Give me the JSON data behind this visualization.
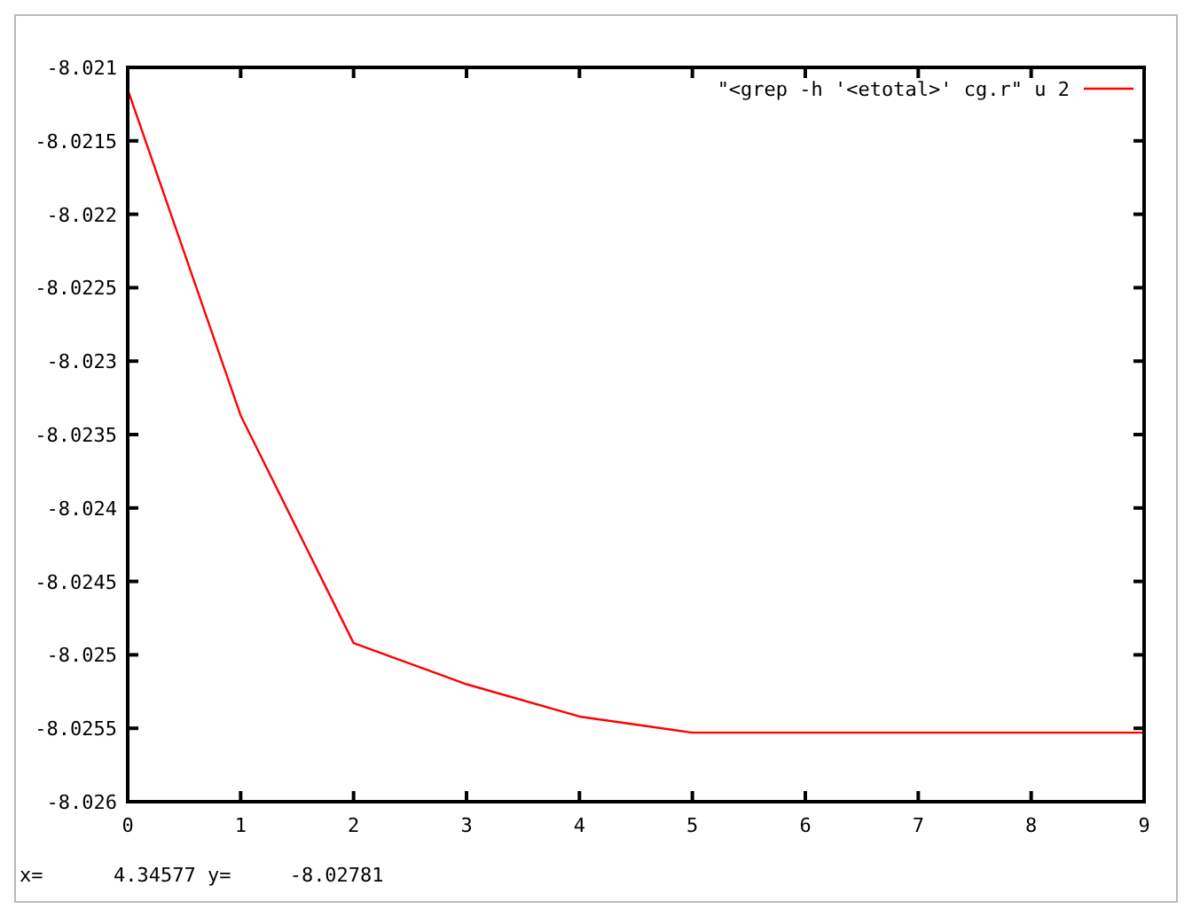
{
  "chart_data": {
    "type": "line",
    "x": [
      0,
      1,
      2,
      3,
      4,
      5,
      6,
      7,
      8,
      9
    ],
    "series": [
      {
        "name": "\"<grep -h '<etotal>' cg.r\" u 2",
        "color": "#ff0000",
        "values": [
          -8.02115,
          -8.02337,
          -8.02492,
          -8.0252,
          -8.02542,
          -8.02553,
          -8.02553,
          -8.02553,
          -8.02553,
          -8.02553
        ]
      }
    ],
    "xlim": [
      0,
      9
    ],
    "xticks": [
      0,
      1,
      2,
      3,
      4,
      5,
      6,
      7,
      8,
      9
    ],
    "ylim": [
      -8.026,
      -8.021
    ],
    "yticks": [
      -8.026,
      -8.0255,
      -8.025,
      -8.0245,
      -8.024,
      -8.0235,
      -8.023,
      -8.0225,
      -8.022,
      -8.0215,
      -8.021
    ],
    "legend": "top right",
    "grid": false,
    "marker": "none",
    "line_style": "solid",
    "annotations": [
      "x=      4.34577 y=     -8.02781"
    ]
  }
}
